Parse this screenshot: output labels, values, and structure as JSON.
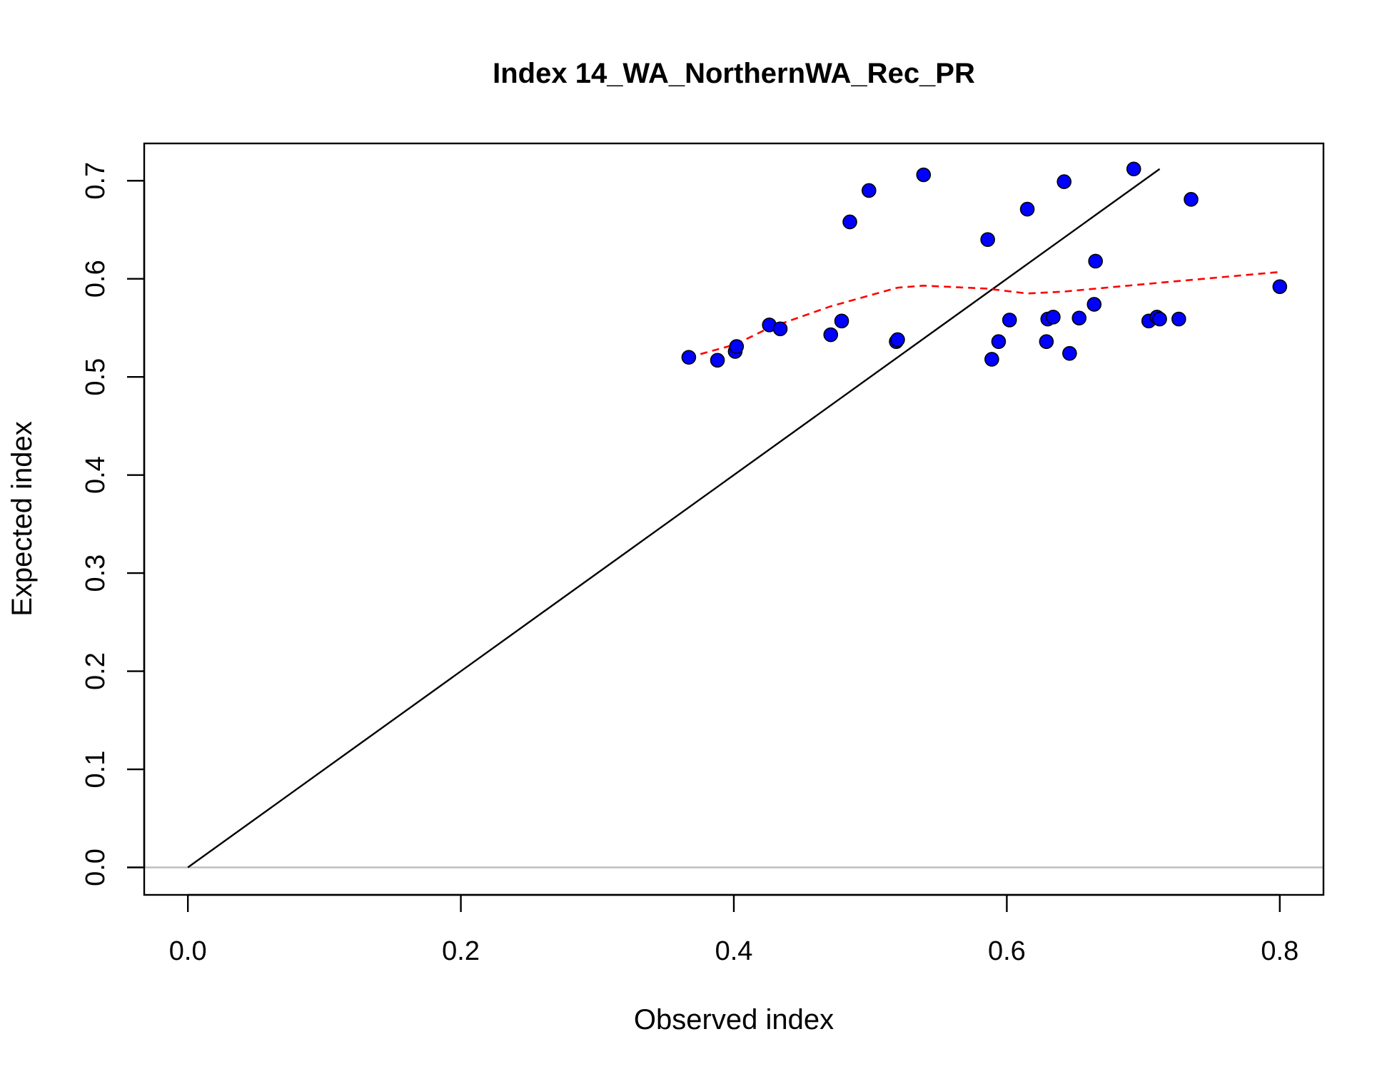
{
  "chart_data": {
    "type": "scatter",
    "title": "Index 14_WA_NorthernWA_Rec_PR",
    "xlabel": "Observed index",
    "ylabel": "Expected index",
    "xlim": [
      -0.032,
      0.832
    ],
    "ylim": [
      -0.028,
      0.738
    ],
    "x_ticks": [
      "0.0",
      "0.2",
      "0.4",
      "0.6",
      "0.8"
    ],
    "y_ticks": [
      "0.0",
      "0.1",
      "0.2",
      "0.3",
      "0.4",
      "0.5",
      "0.6",
      "0.7"
    ],
    "grid": false,
    "legend": "none",
    "colors": {
      "points_fill": "#0000ff",
      "points_stroke": "#000000",
      "identity_line": "#000000",
      "smoother_line": "#ff0000",
      "zero_line": "#bebebe"
    },
    "series": [
      {
        "kind": "points",
        "x": [
          0.367,
          0.388,
          0.401,
          0.402,
          0.426,
          0.434,
          0.471,
          0.479,
          0.485,
          0.499,
          0.519,
          0.52,
          0.539,
          0.586,
          0.589,
          0.594,
          0.602,
          0.615,
          0.629,
          0.63,
          0.634,
          0.642,
          0.646,
          0.653,
          0.664,
          0.665,
          0.693,
          0.704,
          0.71,
          0.712,
          0.726,
          0.735,
          0.8
        ],
        "y": [
          0.52,
          0.517,
          0.526,
          0.531,
          0.553,
          0.549,
          0.543,
          0.557,
          0.658,
          0.69,
          0.536,
          0.538,
          0.706,
          0.64,
          0.518,
          0.536,
          0.558,
          0.671,
          0.536,
          0.559,
          0.561,
          0.699,
          0.524,
          0.56,
          0.574,
          0.618,
          0.712,
          0.557,
          0.561,
          0.559,
          0.559,
          0.681,
          0.592
        ]
      },
      {
        "kind": "identity-line",
        "x": [
          0.0,
          0.712
        ],
        "y": [
          0.0,
          0.712
        ]
      },
      {
        "kind": "smoother",
        "x": [
          0.367,
          0.401,
          0.426,
          0.471,
          0.52,
          0.539,
          0.586,
          0.615,
          0.642,
          0.665,
          0.712,
          0.8
        ],
        "y": [
          0.52,
          0.533,
          0.55,
          0.572,
          0.591,
          0.593,
          0.59,
          0.585,
          0.587,
          0.59,
          0.596,
          0.607
        ]
      },
      {
        "kind": "zero-line",
        "y": 0.0
      }
    ]
  }
}
